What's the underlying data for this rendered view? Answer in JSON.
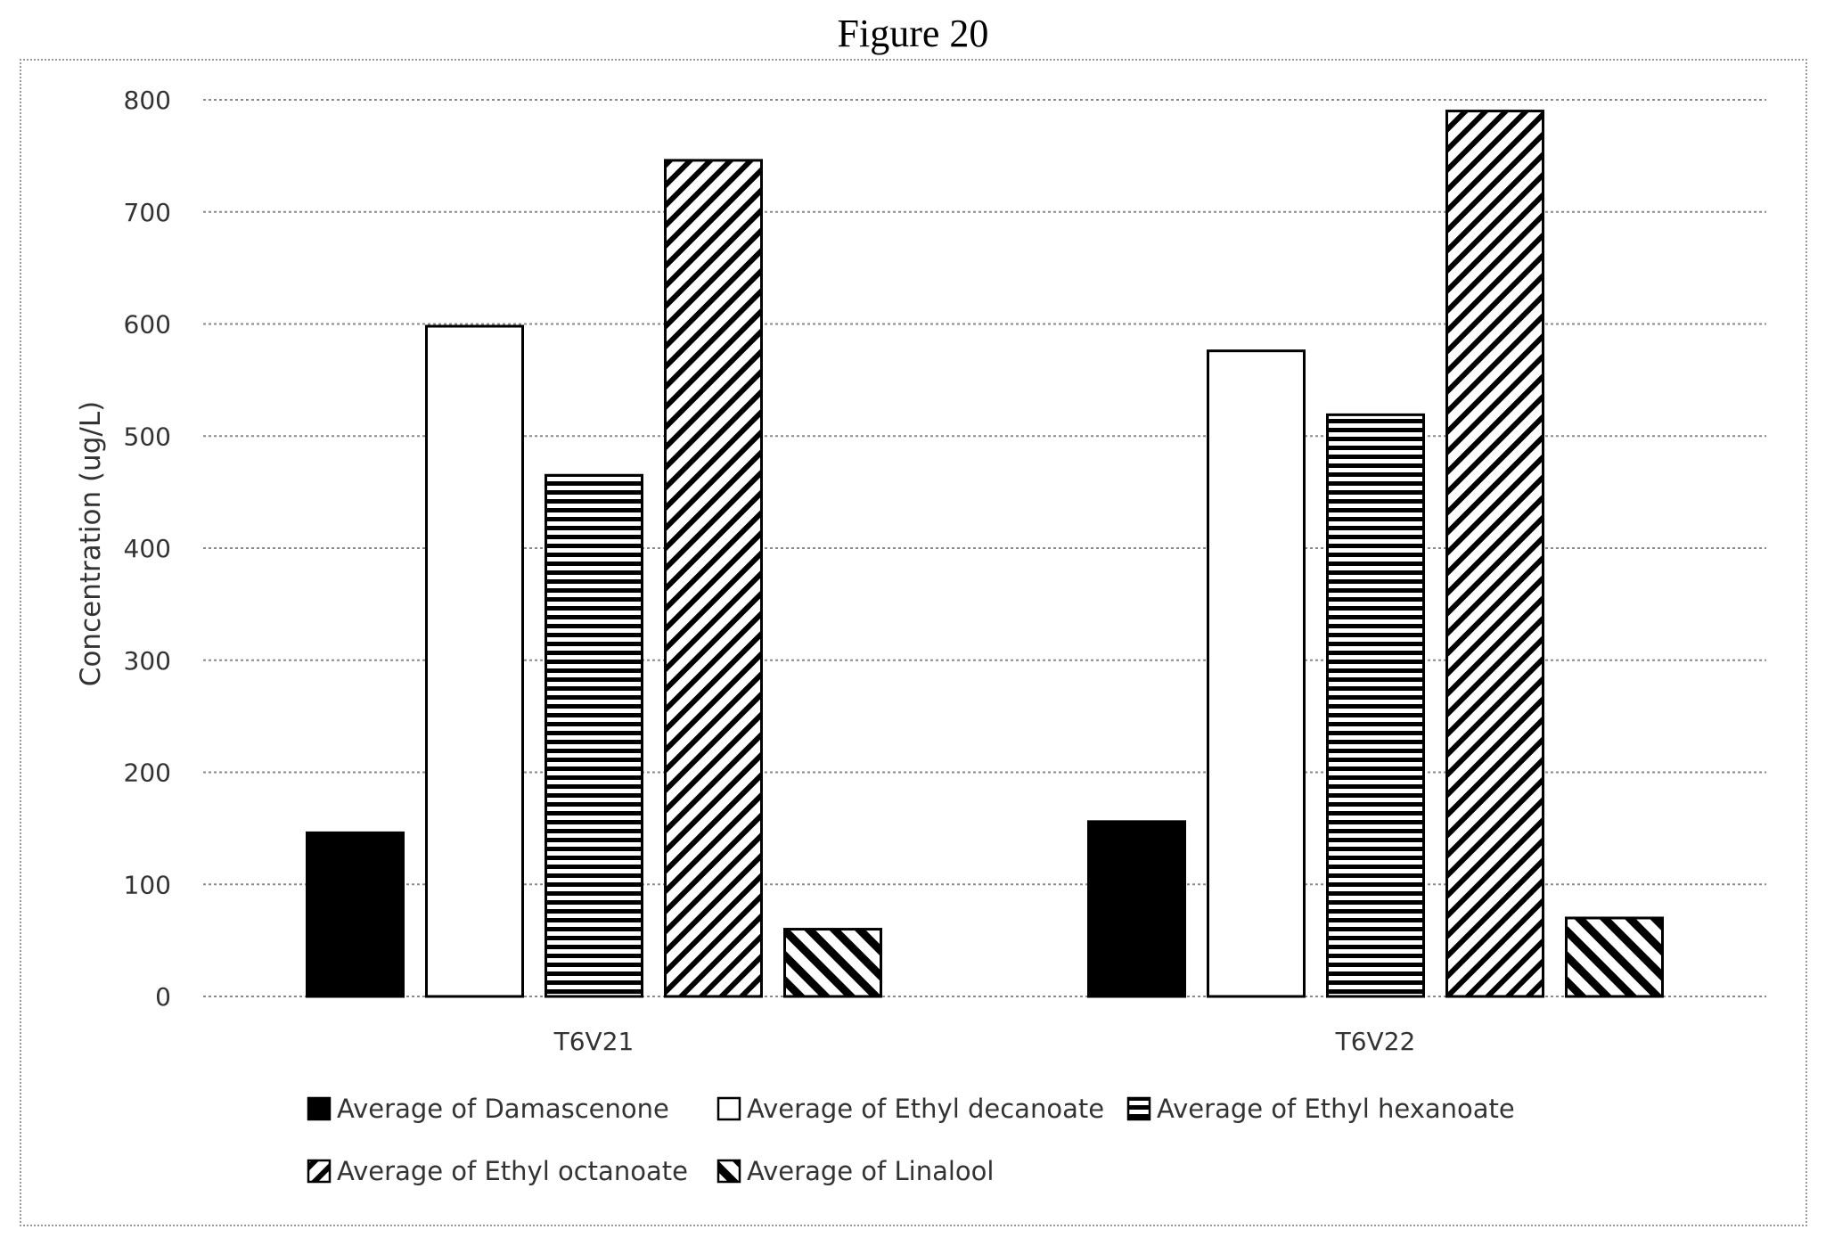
{
  "figure_title": "Figure 20",
  "chart_data": {
    "type": "bar",
    "title": "",
    "xlabel": "",
    "ylabel": "Concentration (ug/L)",
    "ylim": [
      0,
      800
    ],
    "yticks": [
      0,
      100,
      200,
      300,
      400,
      500,
      600,
      700,
      800
    ],
    "grid": true,
    "legend_position": "bottom",
    "categories": [
      "T6V21",
      "T6V22"
    ],
    "series": [
      {
        "name": "Average of Damascenone",
        "pattern": "solid",
        "values": [
          146,
          156
        ]
      },
      {
        "name": "Average of Ethyl decanoate",
        "pattern": "empty",
        "values": [
          598,
          576
        ]
      },
      {
        "name": "Average of Ethyl hexanoate",
        "pattern": "horizontal",
        "values": [
          465,
          519
        ]
      },
      {
        "name": "Average of Ethyl octanoate",
        "pattern": "diag-up",
        "values": [
          746,
          790
        ]
      },
      {
        "name": "Average of Linalool",
        "pattern": "diag-down",
        "values": [
          60,
          70
        ]
      }
    ]
  }
}
